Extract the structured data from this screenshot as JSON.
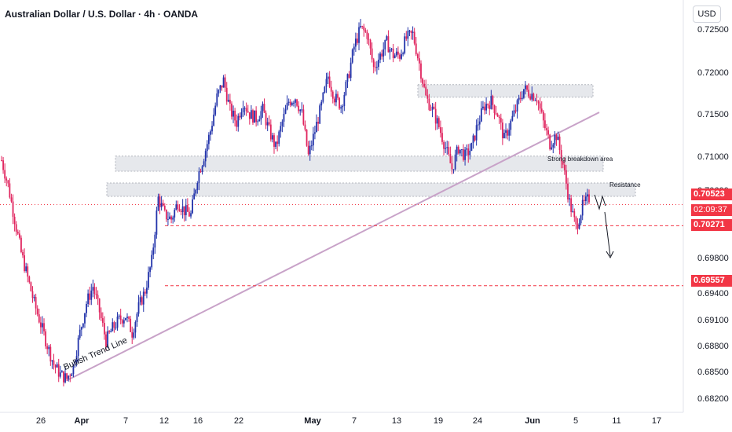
{
  "title": "Australian Dollar / U.S. Dollar · 4h · OANDA",
  "currency": "USD",
  "colors": {
    "up": "#2233aa",
    "down": "#e0245e",
    "zone": "#e6e8ec",
    "level": "#f23645",
    "trend": "#c8a2c8"
  },
  "chart_data": {
    "type": "candlestick",
    "symbol": "AUDUSD",
    "interval": "4h",
    "ylim": [
      0.6805,
      0.7282
    ],
    "y_ticks": [
      "0.72500",
      "0.72000",
      "0.71500",
      "0.71000",
      "0.70600",
      "0.69800",
      "0.69400",
      "0.69100",
      "0.68800",
      "0.68500",
      "0.68200"
    ],
    "x_ticks": [
      "26",
      "Apr",
      "7",
      "12",
      "16",
      "22",
      "May",
      "7",
      "13",
      "19",
      "24",
      "Jun",
      "5",
      "11",
      "17"
    ],
    "price_labels": [
      "0.70523",
      "02:09:37",
      "0.70271",
      "0.69557"
    ],
    "levels": [
      0.70523,
      0.70271,
      0.69557
    ],
    "zones": [
      {
        "low": 0.718,
        "high": 0.7195
      },
      {
        "low": 0.7092,
        "high": 0.711
      },
      {
        "low": 0.7062,
        "high": 0.7078,
        "label": "Resistance"
      }
    ],
    "zone_note": "Strong breakdown area",
    "trendline": {
      "from": 0.6843,
      "to": 0.7162
    },
    "trendline_label": "Bullish Trend Line",
    "path": [
      0.7105,
      0.7075,
      0.7035,
      0.6995,
      0.6965,
      0.6935,
      0.691,
      0.6885,
      0.6862,
      0.685,
      0.6845,
      0.686,
      0.69,
      0.6935,
      0.6955,
      0.6925,
      0.689,
      0.6905,
      0.6915,
      0.692,
      0.69,
      0.693,
      0.695,
      0.6985,
      0.706,
      0.704,
      0.7035,
      0.7055,
      0.7045,
      0.704,
      0.7085,
      0.711,
      0.714,
      0.718,
      0.72,
      0.7165,
      0.715,
      0.7175,
      0.716,
      0.7155,
      0.7165,
      0.714,
      0.712,
      0.715,
      0.7175,
      0.718,
      0.716,
      0.711,
      0.714,
      0.717,
      0.7205,
      0.718,
      0.717,
      0.72,
      0.724,
      0.7262,
      0.7255,
      0.7215,
      0.723,
      0.7245,
      0.723,
      0.723,
      0.725,
      0.7255,
      0.722,
      0.718,
      0.7165,
      0.7145,
      0.712,
      0.7095,
      0.712,
      0.711,
      0.712,
      0.715,
      0.717,
      0.7175,
      0.716,
      0.713,
      0.715,
      0.717,
      0.719,
      0.7185,
      0.718,
      0.715,
      0.7125,
      0.7135,
      0.71,
      0.7055,
      0.7025,
      0.705,
      0.706
    ]
  }
}
